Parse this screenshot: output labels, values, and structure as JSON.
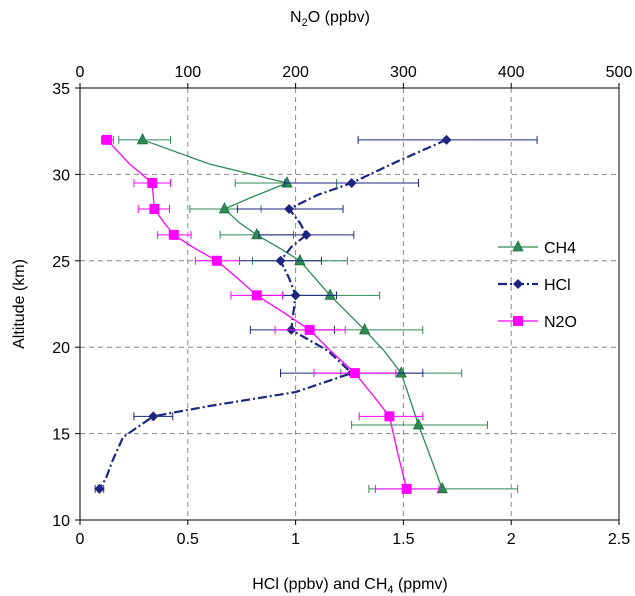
{
  "chart_data": {
    "type": "line",
    "top_axis": {
      "label": "N2O (ppbv)",
      "range": [
        0,
        500
      ],
      "ticks": [
        "0",
        "100",
        "200",
        "300",
        "400",
        "500"
      ]
    },
    "bottom_axis": {
      "label": "HCl (ppbv) and CH4 (ppmv)",
      "range": [
        0,
        2.5
      ],
      "ticks": [
        "0",
        "0.5",
        "1",
        "1.5",
        "2",
        "2.5"
      ]
    },
    "y_axis": {
      "label": "Altitude (km)",
      "range": [
        10,
        35
      ],
      "ticks": [
        "10",
        "15",
        "20",
        "25",
        "30",
        "35"
      ]
    },
    "grid": true,
    "legend_position": "right",
    "series": [
      {
        "name": "CH4",
        "axis": "bottom",
        "color": "#2e8b57",
        "marker": "triangle",
        "points": [
          {
            "x": 0.29,
            "y": 32.0,
            "err": [
              0.18,
              0.42
            ]
          },
          {
            "x": 0.96,
            "y": 29.5,
            "err": [
              0.72,
              1.19
            ]
          },
          {
            "x": 0.67,
            "y": 28.0,
            "err": [
              0.51,
              0.84
            ]
          },
          {
            "x": 0.82,
            "y": 26.5,
            "err": [
              0.65,
              0.99
            ]
          },
          {
            "x": 1.02,
            "y": 25.0,
            "err": [
              0.8,
              1.24
            ]
          },
          {
            "x": 1.16,
            "y": 23.0,
            "err": [
              0.94,
              1.39
            ]
          },
          {
            "x": 1.32,
            "y": 21.0,
            "err": [
              1.05,
              1.59
            ]
          },
          {
            "x": 1.49,
            "y": 18.5,
            "err": [
              1.21,
              1.77
            ]
          },
          {
            "x": 1.57,
            "y": 15.5,
            "err": [
              1.26,
              1.89
            ]
          },
          {
            "x": 1.68,
            "y": 11.8,
            "err": [
              1.34,
              2.03
            ]
          }
        ],
        "curve": [
          [
            0.29,
            32.0
          ],
          [
            0.6,
            30.6
          ],
          [
            0.96,
            29.5
          ],
          [
            0.8,
            28.7
          ],
          [
            0.67,
            28.0
          ],
          [
            0.74,
            27.2
          ],
          [
            0.82,
            26.5
          ],
          [
            0.93,
            25.7
          ],
          [
            1.02,
            25.0
          ],
          [
            1.09,
            24.0
          ],
          [
            1.16,
            23.0
          ],
          [
            1.24,
            22.0
          ],
          [
            1.32,
            21.0
          ],
          [
            1.41,
            19.8
          ],
          [
            1.49,
            18.5
          ],
          [
            1.53,
            17.0
          ],
          [
            1.57,
            15.5
          ],
          [
            1.63,
            13.5
          ],
          [
            1.68,
            11.8
          ]
        ]
      },
      {
        "name": "HCl",
        "axis": "bottom",
        "color": "#1c2580",
        "marker": "diamond",
        "points": [
          {
            "x": 1.7,
            "y": 32.0,
            "err": [
              1.29,
              2.12
            ]
          },
          {
            "x": 1.26,
            "y": 29.5,
            "err": [
              0.95,
              1.57
            ]
          },
          {
            "x": 0.97,
            "y": 28.0,
            "err": [
              0.73,
              1.22
            ]
          },
          {
            "x": 1.05,
            "y": 26.5,
            "err": [
              0.83,
              1.27
            ]
          },
          {
            "x": 0.93,
            "y": 25.0,
            "err": [
              0.74,
              1.12
            ]
          },
          {
            "x": 1.0,
            "y": 23.0,
            "err": [
              0.81,
              1.19
            ]
          },
          {
            "x": 0.98,
            "y": 21.0,
            "err": [
              0.79,
              1.18
            ]
          },
          {
            "x": 1.26,
            "y": 18.5,
            "err": [
              0.93,
              1.59
            ]
          },
          {
            "x": 0.34,
            "y": 16.0,
            "err": [
              0.25,
              0.43
            ]
          },
          {
            "x": 0.09,
            "y": 11.8,
            "err": [
              0.07,
              0.11
            ]
          }
        ],
        "curve": [
          [
            1.7,
            32.0
          ],
          [
            1.48,
            30.8
          ],
          [
            1.26,
            29.5
          ],
          [
            1.1,
            28.8
          ],
          [
            0.97,
            28.0
          ],
          [
            1.02,
            27.2
          ],
          [
            1.05,
            26.5
          ],
          [
            0.98,
            25.8
          ],
          [
            0.93,
            25.0
          ],
          [
            0.97,
            24.0
          ],
          [
            1.0,
            23.0
          ],
          [
            0.99,
            22.0
          ],
          [
            0.98,
            21.0
          ],
          [
            1.15,
            19.8
          ],
          [
            1.26,
            18.5
          ],
          [
            1.0,
            17.4
          ],
          [
            0.6,
            16.6
          ],
          [
            0.34,
            16.0
          ],
          [
            0.2,
            14.8
          ],
          [
            0.15,
            13.4
          ],
          [
            0.12,
            12.4
          ],
          [
            0.09,
            11.8
          ]
        ]
      },
      {
        "name": "N2O",
        "axis": "top",
        "color": "#ff00ff",
        "marker": "square",
        "points": [
          {
            "x": 25,
            "y": 32.0,
            "err": [
              20,
              31
            ]
          },
          {
            "x": 67,
            "y": 29.5,
            "err": [
              50,
              84
            ]
          },
          {
            "x": 69,
            "y": 28.0,
            "err": [
              54,
              83
            ]
          },
          {
            "x": 87,
            "y": 26.5,
            "err": [
              72,
              103
            ]
          },
          {
            "x": 127,
            "y": 25.0,
            "err": [
              107,
              148
            ]
          },
          {
            "x": 164,
            "y": 23.0,
            "err": [
              140,
              188
            ]
          },
          {
            "x": 213,
            "y": 21.0,
            "err": [
              181,
              246
            ]
          },
          {
            "x": 255,
            "y": 18.5,
            "err": [
              217,
              293
            ]
          },
          {
            "x": 287,
            "y": 16.0,
            "err": [
              259,
              318
            ]
          },
          {
            "x": 303,
            "y": 11.8,
            "err": [
              274,
              333
            ]
          }
        ],
        "curve": [
          [
            25,
            32.0
          ],
          [
            46,
            30.6
          ],
          [
            67,
            29.5
          ],
          [
            68,
            28.7
          ],
          [
            69,
            28.0
          ],
          [
            78,
            27.2
          ],
          [
            87,
            26.5
          ],
          [
            107,
            25.7
          ],
          [
            127,
            25.0
          ],
          [
            146,
            24.0
          ],
          [
            164,
            23.0
          ],
          [
            189,
            22.0
          ],
          [
            213,
            21.0
          ],
          [
            234,
            19.7
          ],
          [
            255,
            18.5
          ],
          [
            272,
            17.2
          ],
          [
            287,
            16.0
          ],
          [
            295,
            13.8
          ],
          [
            303,
            11.8
          ]
        ]
      }
    ]
  }
}
